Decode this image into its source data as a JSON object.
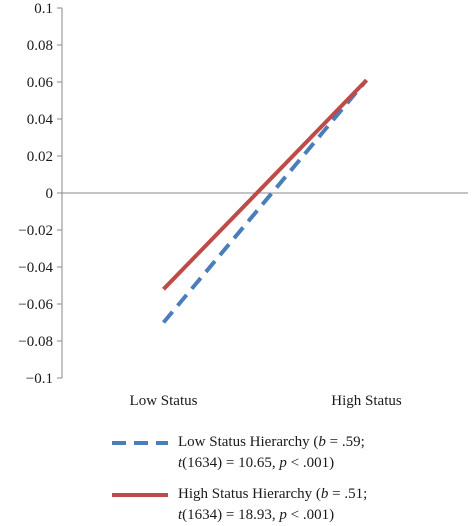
{
  "chart_data": {
    "type": "line",
    "categories": [
      "Low Status",
      "High Status"
    ],
    "ylim": [
      -0.1,
      0.1
    ],
    "yticks": [
      "0.1",
      "0.08",
      "0.06",
      "0.04",
      "0.02",
      "0",
      "−0.02",
      "−0.04",
      "−0.06",
      "−0.08",
      "−0.1"
    ],
    "ytick_values": [
      0.1,
      0.08,
      0.06,
      0.04,
      0.02,
      0,
      -0.02,
      -0.04,
      -0.06,
      -0.08,
      -0.1
    ],
    "series": [
      {
        "name": "Low Status Hierarchy",
        "values": [
          -0.07,
          0.061
        ],
        "color": "#4a7ebb",
        "dash": "dashed",
        "legend_line1_pre": "Low Status Hierarchy (",
        "legend_line1_b": "b",
        "legend_line1_post": " = .59;",
        "legend_line2_t": "t",
        "legend_line2_mid": "(1634) = 10.65, ",
        "legend_line2_p": "p",
        "legend_line2_post": " < .001)"
      },
      {
        "name": "High Status Hierarchy",
        "values": [
          -0.052,
          0.061
        ],
        "color": "#be4b48",
        "dash": "solid",
        "legend_line1_pre": "High Status Hierarchy (",
        "legend_line1_b": "b",
        "legend_line1_post": " = .51;",
        "legend_line2_t": "t",
        "legend_line2_mid": "(1634) = 18.93, ",
        "legend_line2_p": "p",
        "legend_line2_post": " < .001)"
      }
    ],
    "grid": false,
    "legend_position": "bottom"
  }
}
